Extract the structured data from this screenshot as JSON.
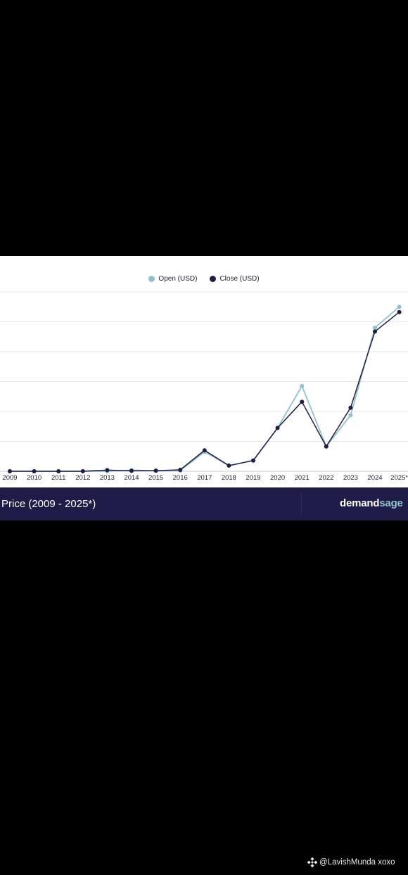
{
  "chart_data": {
    "type": "line",
    "categories": [
      "2009",
      "2010",
      "2011",
      "2012",
      "2013",
      "2014",
      "2015",
      "2016",
      "2017",
      "2018",
      "2019",
      "2020",
      "2021",
      "2022",
      "2023",
      "2024",
      "2025*"
    ],
    "series": [
      {
        "name": "Open (USD)",
        "color": "#8ec3cc",
        "values": [
          0,
          0,
          1,
          6,
          13,
          770,
          315,
          430,
          13000,
          3700,
          7200,
          29000,
          57000,
          16600,
          37500,
          96000,
          110000
        ]
      },
      {
        "name": "Close (USD)",
        "color": "#201c4a",
        "values": [
          0,
          0,
          5,
          13,
          750,
          320,
          430,
          960,
          14000,
          3800,
          7200,
          29000,
          46500,
          16600,
          42500,
          93500,
          106500
        ]
      }
    ],
    "ylim": [
      0,
      120000
    ],
    "grid": true,
    "legend": "top-center",
    "footer_title": "Price (2009 - 2025*)"
  },
  "brand": {
    "part1": "demand",
    "part2": "sage"
  },
  "watermark": {
    "text": "@LavishMunda xoxo",
    "icon": "binance-icon"
  },
  "colors": {
    "background": "#000000",
    "panel": "#ffffff",
    "footer": "#201c4a",
    "open": "#8ec3cc",
    "close": "#201c4a"
  }
}
